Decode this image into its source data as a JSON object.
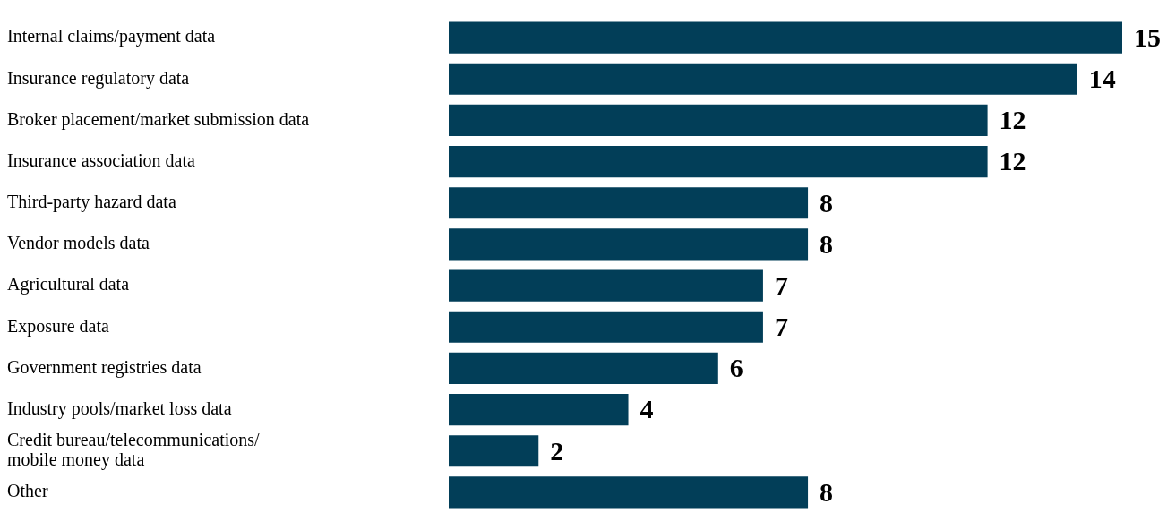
{
  "chart_data": {
    "type": "bar",
    "orientation": "horizontal",
    "categories": [
      "Internal claims/payment data",
      "Insurance regulatory data",
      "Broker placement/market submission data",
      "Insurance association data",
      "Third-party hazard data",
      "Vendor models data",
      "Agricultural data",
      "Exposure data",
      "Government registries data",
      "Industry pools/market loss data",
      "Credit bureau/telecommunications/mobile money data",
      "Other"
    ],
    "values": [
      15,
      14,
      12,
      12,
      8,
      8,
      7,
      7,
      6,
      4,
      2,
      8
    ],
    "color": "#023e58",
    "data_labels": true,
    "legend": false
  }
}
